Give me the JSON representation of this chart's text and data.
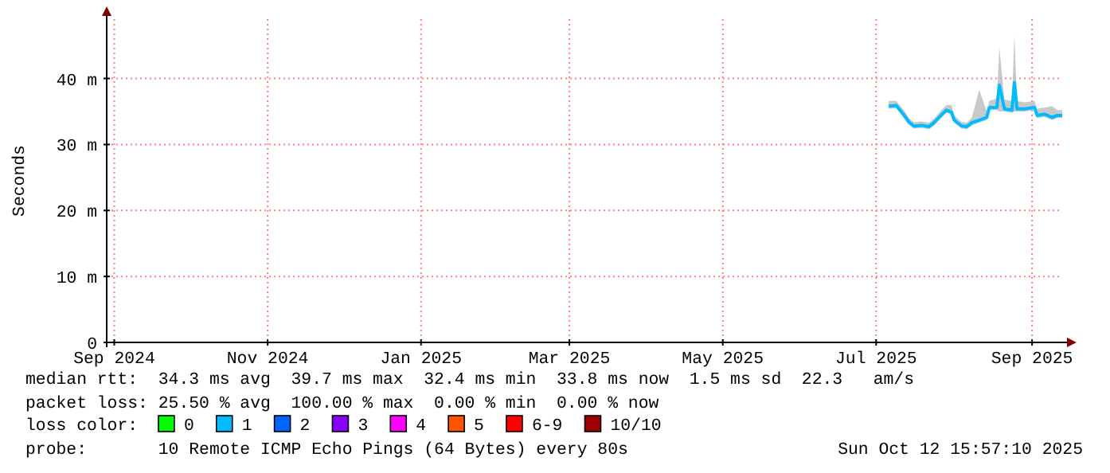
{
  "chart_data": {
    "type": "line",
    "ylabel": "Seconds",
    "legend_title": "loss color:",
    "legend": "bottom",
    "grid": true,
    "marker": "none",
    "line_style": "solid",
    "xlim": [
      "2024-08-29",
      "2025-09-13"
    ],
    "xticks": [
      {
        "value": "2024-09-01",
        "label": "Sep 2024"
      },
      {
        "value": "2024-11-01",
        "label": "Nov 2024"
      },
      {
        "value": "2025-01-01",
        "label": "Jan 2025"
      },
      {
        "value": "2025-03-01",
        "label": "Mar 2025"
      },
      {
        "value": "2025-05-01",
        "label": "May 2025"
      },
      {
        "value": "2025-07-01",
        "label": "Jul 2025"
      },
      {
        "value": "2025-09-01",
        "label": "Sep 2025"
      }
    ],
    "ylim": [
      0,
      49
    ],
    "yticks": [
      0,
      {
        "value": 10,
        "label": "10 m"
      },
      {
        "value": 20,
        "label": "20 m"
      },
      {
        "value": 30,
        "label": "30 m"
      },
      {
        "value": 40,
        "label": "40 m"
      }
    ],
    "x": [
      "2025-07-06",
      "2025-07-09",
      "2025-07-12",
      "2025-07-14",
      "2025-07-16",
      "2025-07-19",
      "2025-07-22",
      "2025-07-24",
      "2025-07-27",
      "2025-07-29",
      "2025-07-31",
      "2025-08-01",
      "2025-08-04",
      "2025-08-06",
      "2025-08-08",
      "2025-08-11",
      "2025-08-14",
      "2025-08-15",
      "2025-08-18",
      "2025-08-19",
      "2025-08-21",
      "2025-08-24",
      "2025-08-25",
      "2025-08-26",
      "2025-08-29",
      "2025-09-02",
      "2025-09-03",
      "2025-09-06",
      "2025-09-09",
      "2025-09-11",
      "2025-09-13"
    ],
    "series": [
      {
        "name": "0",
        "color": "#00ff00",
        "values": [
          null,
          null,
          null,
          null,
          null,
          null,
          null,
          null,
          null,
          null,
          null,
          null,
          null,
          null,
          null,
          null,
          null,
          null,
          null,
          null,
          null,
          null,
          null,
          null,
          null,
          null,
          null,
          null,
          null,
          null,
          null
        ]
      },
      {
        "name": "1",
        "color": "#00bbff",
        "values": [
          35.8,
          35.9,
          34.5,
          33.4,
          32.8,
          32.9,
          32.7,
          33.3,
          34.5,
          35.2,
          34.9,
          33.7,
          32.8,
          32.7,
          33.3,
          33.7,
          34.1,
          35.6,
          35.6,
          39.0,
          35.4,
          35.2,
          39.4,
          35.4,
          35.4,
          35.6,
          34.4,
          34.6,
          34.1,
          34.4,
          34.4
        ],
        "lower": [
          35.4,
          35.5,
          34.0,
          33.0,
          32.4,
          32.5,
          32.3,
          32.9,
          34.1,
          34.8,
          34.5,
          33.3,
          32.4,
          32.3,
          32.9,
          33.3,
          33.7,
          35.2,
          35.2,
          35.0,
          35.0,
          34.8,
          35.0,
          35.0,
          35.0,
          35.2,
          34.0,
          34.2,
          33.7,
          34.0,
          34.0
        ],
        "upper": [
          36.6,
          36.6,
          35.2,
          34.0,
          33.4,
          33.5,
          33.3,
          33.9,
          35.2,
          36.0,
          36.0,
          34.4,
          33.4,
          33.3,
          34.0,
          38.3,
          35.0,
          36.6,
          37.0,
          44.7,
          36.8,
          36.6,
          46.6,
          36.6,
          36.4,
          36.6,
          35.4,
          35.6,
          35.8,
          35.2,
          35.2
        ]
      },
      {
        "name": "2",
        "color": "#0066ff",
        "values": [
          null,
          null,
          null,
          null,
          null,
          null,
          null,
          null,
          null,
          null,
          null,
          null,
          null,
          null,
          null,
          null,
          null,
          null,
          null,
          null,
          null,
          null,
          null,
          null,
          null,
          null,
          null,
          null,
          null,
          null,
          null
        ]
      },
      {
        "name": "3",
        "color": "#8800ff",
        "values": [
          null,
          null,
          null,
          null,
          null,
          null,
          null,
          null,
          null,
          null,
          null,
          null,
          null,
          null,
          null,
          null,
          null,
          null,
          null,
          null,
          null,
          null,
          null,
          null,
          null,
          null,
          null,
          null,
          null,
          null,
          null
        ]
      },
      {
        "name": "4",
        "color": "#ff00ff",
        "values": [
          null,
          null,
          null,
          null,
          null,
          null,
          null,
          null,
          null,
          null,
          null,
          null,
          null,
          null,
          null,
          null,
          null,
          null,
          null,
          null,
          null,
          null,
          null,
          null,
          null,
          null,
          null,
          null,
          null,
          null,
          null
        ]
      },
      {
        "name": "5",
        "color": "#ff5500",
        "values": [
          null,
          null,
          null,
          null,
          null,
          null,
          null,
          null,
          null,
          null,
          null,
          null,
          null,
          null,
          null,
          null,
          null,
          null,
          null,
          null,
          null,
          null,
          null,
          null,
          null,
          null,
          null,
          null,
          null,
          null,
          null
        ]
      },
      {
        "name": "6-9",
        "color": "#ff0000",
        "values": [
          null,
          null,
          null,
          null,
          null,
          null,
          null,
          null,
          null,
          null,
          null,
          null,
          null,
          null,
          null,
          null,
          null,
          null,
          null,
          null,
          null,
          null,
          null,
          null,
          null,
          null,
          null,
          null,
          null,
          null,
          null
        ]
      },
      {
        "name": "10/10",
        "color": "#a10000",
        "values": [
          null,
          null,
          null,
          null,
          null,
          null,
          null,
          null,
          null,
          null,
          null,
          null,
          null,
          null,
          null,
          null,
          null,
          null,
          null,
          null,
          null,
          null,
          null,
          null,
          null,
          null,
          null,
          null,
          null,
          null,
          null
        ]
      }
    ],
    "annotations": [
      "median rtt:  34.3 ms avg  39.7 ms max  32.4 ms min  33.8 ms now  1.5 ms sd  22.3   am/s",
      "packet loss: 25.50 % avg  100.00 % max  0.00 % min  0.00 % now",
      "probe:       10 Remote ICMP Echo Pings (64 Bytes) every 80s",
      "Sun Oct 12 15:57:10 2025"
    ]
  }
}
